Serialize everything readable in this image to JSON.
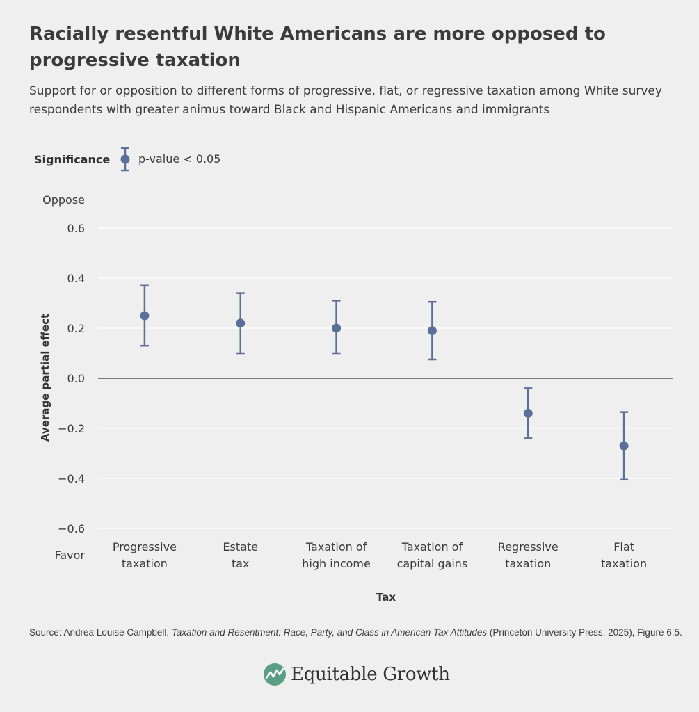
{
  "chart_data": {
    "type": "scatter",
    "title": "Racially resentful White Americans are more opposed to progressive taxation",
    "subtitle": "Support for or opposition to different forms of progressive, flat, or regressive taxation among White survey respondents with greater animus toward Black and Hispanic Americans and immigrants",
    "xlabel": "Tax",
    "ylabel": "Average partial effect",
    "ylim": [
      -0.6,
      0.6
    ],
    "yticks": [
      0.6,
      0.4,
      0.2,
      0.0,
      -0.2,
      -0.4,
      -0.6
    ],
    "ytick_labels": [
      "0.6",
      "0.4",
      "0.2",
      "0.0",
      "−0.2",
      "−0.4",
      "−0.6"
    ],
    "y_top_label": "Oppose",
    "y_bottom_label": "Favor",
    "legend": {
      "title": "Significance",
      "label": "p-value < 0.05"
    },
    "categories": [
      [
        "Progressive",
        "taxation"
      ],
      [
        "Estate",
        "tax"
      ],
      [
        "Taxation of",
        "high income"
      ],
      [
        "Taxation of",
        "capital gains"
      ],
      [
        "Regressive",
        "taxation"
      ],
      [
        "Flat",
        "taxation"
      ]
    ],
    "values": [
      0.25,
      0.22,
      0.2,
      0.19,
      -0.14,
      -0.27
    ],
    "ci_low": [
      0.13,
      0.1,
      0.1,
      0.075,
      -0.24,
      -0.405
    ],
    "ci_high": [
      0.37,
      0.34,
      0.31,
      0.305,
      -0.04,
      -0.135
    ],
    "point_color": "#5b6f9a",
    "source": {
      "prefix": "Source: Andrea Louise Campbell, ",
      "book": "Taxation and Resentment: Race, Party, and Class in American Tax Attitudes",
      "suffix": " (Princeton University Press, 2025), Figure 6.5."
    }
  },
  "brand": {
    "name": "Equitable Growth",
    "color": "#5a9e86"
  }
}
